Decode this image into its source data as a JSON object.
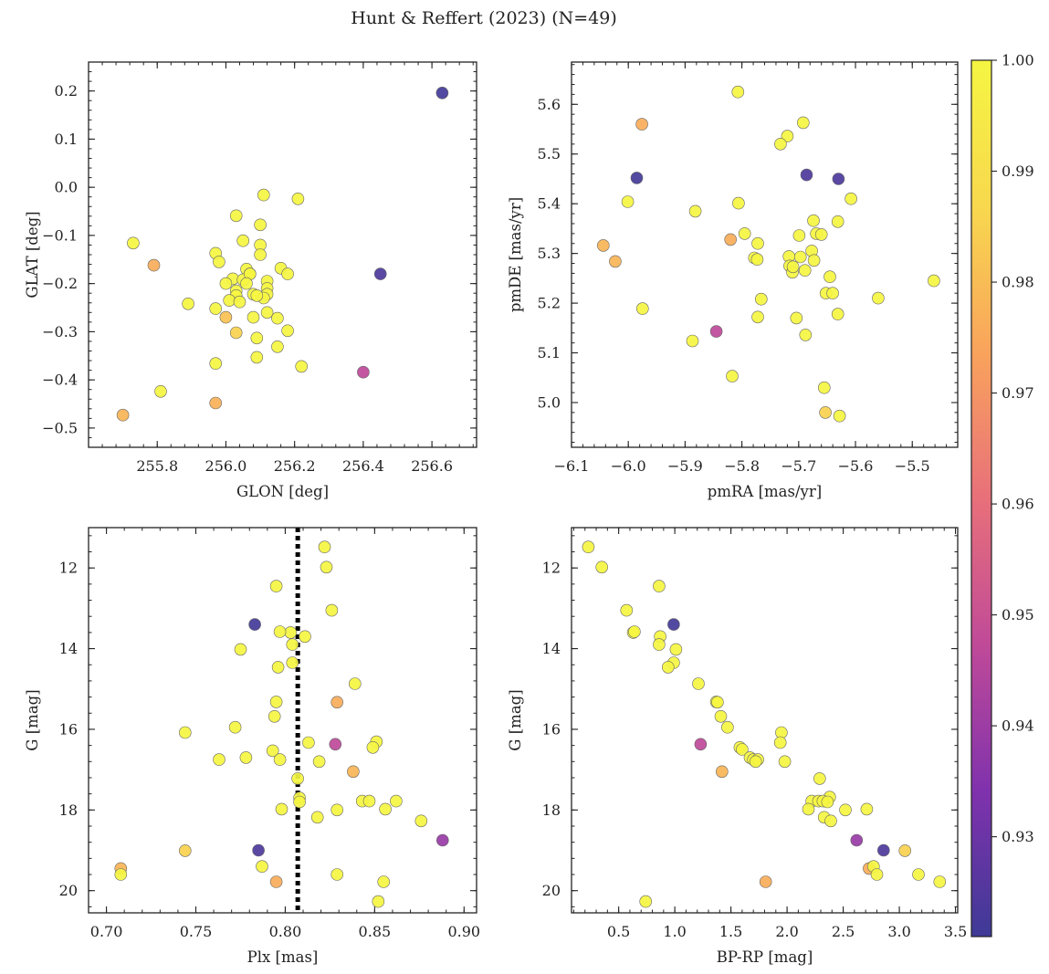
{
  "figure_title": "Hunt & Reffert (2023) (N=49)",
  "colorbar": {
    "min": 0.921,
    "max": 1.0,
    "ticks": [
      "0.93",
      "0.94",
      "0.95",
      "0.96",
      "0.97",
      "0.98",
      "0.99",
      "1.00"
    ],
    "tick_values": [
      0.93,
      0.94,
      0.95,
      0.96,
      0.97,
      0.98,
      0.99,
      1.0
    ],
    "colormap": "plasma",
    "colormap_stops": [
      "#3e3a96",
      "#8032ad",
      "#c04a98",
      "#e8707a",
      "#f9a35c",
      "#f8d84e",
      "#f5f542"
    ]
  },
  "chart_data": [
    {
      "type": "scatter",
      "xlabel": "GLON [deg]",
      "ylabel": "GLAT [deg]",
      "xlim": [
        255.6,
        256.73
      ],
      "ylim": [
        -0.54,
        0.26
      ],
      "xticks": [
        255.8,
        256.0,
        256.2,
        256.4,
        256.6
      ],
      "xtick_labels": [
        "255.8",
        "256.0",
        "256.2",
        "256.4",
        "256.6"
      ],
      "yticks": [
        -0.5,
        -0.4,
        -0.3,
        -0.2,
        -0.1,
        0.0,
        0.1,
        0.2
      ],
      "ytick_labels": [
        "−0.5",
        "−0.4",
        "−0.3",
        "−0.2",
        "−0.1",
        "0.0",
        "0.1",
        "0.2"
      ],
      "invert_y": false,
      "vline": null,
      "x": [
        256.63,
        256.45,
        256.4,
        255.7,
        255.79,
        256.0,
        255.97,
        256.03,
        255.73,
        256.11,
        256.21,
        256.1,
        256.03,
        256.05,
        255.97,
        255.98,
        256.1,
        256.1,
        256.06,
        256.08,
        256.07,
        256.16,
        256.18,
        256.12,
        256.12,
        256.08,
        256.12,
        256.11,
        256.09,
        256.03,
        256.03,
        256.01,
        256.02,
        256.05,
        256.07,
        256.15,
        256.18,
        256.09,
        256.15,
        256.09,
        256.22,
        255.97,
        255.97,
        255.81,
        255.89,
        256.04,
        256.0,
        256.06,
        256.12
      ],
      "y": [
        0.196,
        -0.18,
        -0.384,
        -0.473,
        -0.162,
        -0.27,
        -0.448,
        -0.302,
        -0.116,
        -0.016,
        -0.024,
        -0.078,
        -0.059,
        -0.111,
        -0.137,
        -0.155,
        -0.12,
        -0.14,
        -0.17,
        -0.27,
        -0.18,
        -0.168,
        -0.18,
        -0.195,
        -0.21,
        -0.222,
        -0.222,
        -0.23,
        -0.225,
        -0.215,
        -0.225,
        -0.235,
        -0.19,
        -0.192,
        -0.18,
        -0.272,
        -0.298,
        -0.313,
        -0.331,
        -0.353,
        -0.372,
        -0.252,
        -0.366,
        -0.424,
        -0.242,
        -0.238,
        -0.2,
        -0.2,
        -0.26
      ],
      "c": [
        0.922,
        0.924,
        0.947,
        0.978,
        0.976,
        0.981,
        0.977,
        0.985,
        1.0,
        1.0,
        1.0,
        1.0,
        1.0,
        1.0,
        1.0,
        1.0,
        1.0,
        1.0,
        1.0,
        1.0,
        1.0,
        1.0,
        1.0,
        1.0,
        1.0,
        1.0,
        1.0,
        1.0,
        1.0,
        1.0,
        1.0,
        1.0,
        1.0,
        1.0,
        1.0,
        1.0,
        1.0,
        1.0,
        1.0,
        1.0,
        1.0,
        1.0,
        1.0,
        1.0,
        1.0,
        1.0,
        1.0,
        1.0,
        1.0
      ]
    },
    {
      "type": "scatter",
      "xlabel": "pmRA [mas/yr]",
      "ylabel": "pmDE [mas/yr]",
      "xlim": [
        -6.1,
        -5.42
      ],
      "ylim": [
        4.91,
        5.685
      ],
      "xticks": [
        -6.1,
        -6.0,
        -5.9,
        -5.8,
        -5.7,
        -5.6,
        -5.5
      ],
      "xtick_labels": [
        "−6.1",
        "−6.0",
        "−5.9",
        "−5.8",
        "−5.7",
        "−5.6",
        "−5.5"
      ],
      "yticks": [
        5.0,
        5.1,
        5.2,
        5.3,
        5.4,
        5.5,
        5.6
      ],
      "ytick_labels": [
        "5.0",
        "5.1",
        "5.2",
        "5.3",
        "5.4",
        "5.5",
        "5.6"
      ],
      "invert_y": false,
      "vline": null,
      "x": [
        -5.985,
        -5.686,
        -5.63,
        -5.845,
        -6.044,
        -6.023,
        -5.976,
        -5.82,
        -5.653,
        -5.807,
        -5.692,
        -5.72,
        -5.732,
        -5.806,
        -6.001,
        -5.882,
        -5.608,
        -5.674,
        -5.631,
        -5.669,
        -5.66,
        -5.699,
        -5.677,
        -5.717,
        -5.778,
        -5.772,
        -5.716,
        -5.697,
        -5.689,
        -5.711,
        -5.673,
        -5.652,
        -5.645,
        -5.56,
        -5.462,
        -5.631,
        -5.773,
        -5.766,
        -5.975,
        -5.704,
        -5.688,
        -5.887,
        -5.817,
        -5.655,
        -5.628,
        -5.795,
        -5.772,
        -5.71,
        -5.64
      ],
      "y": [
        5.452,
        5.458,
        5.45,
        5.143,
        5.316,
        5.284,
        5.56,
        5.328,
        4.98,
        5.625,
        5.563,
        5.536,
        5.52,
        5.401,
        5.404,
        5.385,
        5.41,
        5.366,
        5.364,
        5.34,
        5.338,
        5.336,
        5.305,
        5.294,
        5.291,
        5.32,
        5.275,
        5.293,
        5.266,
        5.262,
        5.286,
        5.22,
        5.253,
        5.21,
        5.245,
        5.178,
        5.288,
        5.208,
        5.189,
        5.17,
        5.136,
        5.124,
        5.053,
        5.03,
        4.973,
        5.34,
        5.172,
        5.273,
        5.22
      ],
      "c": [
        0.922,
        0.924,
        0.924,
        0.947,
        0.978,
        0.978,
        0.976,
        0.976,
        0.985,
        1.0,
        1.0,
        1.0,
        1.0,
        1.0,
        1.0,
        1.0,
        1.0,
        1.0,
        1.0,
        1.0,
        1.0,
        1.0,
        1.0,
        1.0,
        1.0,
        1.0,
        1.0,
        1.0,
        1.0,
        1.0,
        1.0,
        1.0,
        1.0,
        1.0,
        1.0,
        1.0,
        1.0,
        1.0,
        1.0,
        1.0,
        1.0,
        1.0,
        1.0,
        1.0,
        1.0,
        1.0,
        1.0,
        1.0,
        1.0
      ]
    },
    {
      "type": "scatter",
      "xlabel": "Plx [mas]",
      "ylabel": "G [mag]",
      "xlim": [
        0.69,
        0.907
      ],
      "ylim": [
        11.0,
        20.55
      ],
      "xticks": [
        0.7,
        0.75,
        0.8,
        0.85,
        0.9
      ],
      "xtick_labels": [
        "0.70",
        "0.75",
        "0.80",
        "0.85",
        "0.90"
      ],
      "yticks": [
        12,
        14,
        16,
        18,
        20
      ],
      "ytick_labels": [
        "12",
        "14",
        "16",
        "18",
        "20"
      ],
      "invert_y": true,
      "vline": 0.807,
      "x": [
        0.783,
        0.785,
        0.888,
        0.828,
        0.708,
        0.744,
        0.795,
        0.838,
        0.829,
        0.822,
        0.823,
        0.795,
        0.826,
        0.803,
        0.797,
        0.811,
        0.775,
        0.804,
        0.796,
        0.839,
        0.795,
        0.794,
        0.744,
        0.772,
        0.813,
        0.851,
        0.849,
        0.793,
        0.819,
        0.797,
        0.763,
        0.778,
        0.807,
        0.808,
        0.808,
        0.843,
        0.862,
        0.847,
        0.856,
        0.798,
        0.818,
        0.829,
        0.876,
        0.787,
        0.708,
        0.829,
        0.855,
        0.852,
        0.804
      ],
      "y": [
        13.4,
        19.0,
        18.75,
        16.37,
        19.45,
        19.01,
        19.78,
        17.05,
        15.33,
        11.48,
        11.98,
        12.45,
        13.05,
        13.6,
        13.58,
        13.7,
        14.02,
        13.9,
        14.46,
        14.87,
        15.32,
        15.68,
        16.08,
        15.95,
        16.33,
        16.31,
        16.45,
        16.53,
        16.8,
        16.75,
        16.75,
        16.7,
        17.22,
        17.7,
        17.8,
        17.78,
        17.78,
        17.78,
        17.98,
        17.98,
        18.18,
        18.0,
        18.27,
        19.4,
        19.6,
        19.6,
        19.78,
        20.27,
        14.35
      ],
      "c": [
        0.922,
        0.924,
        0.939,
        0.947,
        0.978,
        0.985,
        0.976,
        0.978,
        0.976,
        1.0,
        1.0,
        1.0,
        1.0,
        1.0,
        1.0,
        1.0,
        1.0,
        1.0,
        1.0,
        1.0,
        1.0,
        1.0,
        1.0,
        1.0,
        1.0,
        1.0,
        1.0,
        1.0,
        1.0,
        1.0,
        1.0,
        1.0,
        1.0,
        1.0,
        1.0,
        1.0,
        1.0,
        1.0,
        1.0,
        1.0,
        1.0,
        1.0,
        1.0,
        1.0,
        1.0,
        1.0,
        1.0,
        1.0,
        1.0
      ]
    },
    {
      "type": "scatter",
      "xlabel": "BP-RP [mag]",
      "ylabel": "G [mag]",
      "xlim": [
        0.08,
        3.52
      ],
      "ylim": [
        11.0,
        20.55
      ],
      "xticks": [
        0.5,
        1.0,
        1.5,
        2.0,
        2.5,
        3.0,
        3.5
      ],
      "xtick_labels": [
        "0.5",
        "1.0",
        "1.5",
        "2.0",
        "2.5",
        "3.0",
        "3.5"
      ],
      "yticks": [
        12,
        14,
        16,
        18,
        20
      ],
      "ytick_labels": [
        "12",
        "14",
        "16",
        "18",
        "20"
      ],
      "invert_y": true,
      "vline": null,
      "x": [
        0.99,
        2.86,
        2.62,
        1.23,
        1.42,
        3.05,
        2.73,
        1.81,
        0.23,
        0.35,
        0.86,
        0.57,
        0.63,
        0.64,
        0.87,
        0.86,
        1.01,
        0.99,
        0.94,
        1.21,
        1.37,
        1.38,
        1.41,
        1.47,
        1.95,
        1.94,
        1.58,
        1.6,
        1.67,
        1.7,
        1.74,
        1.72,
        1.98,
        2.29,
        2.38,
        2.22,
        2.28,
        2.32,
        2.36,
        2.52,
        2.71,
        2.19,
        2.33,
        2.39,
        2.77,
        2.8,
        3.17,
        3.36,
        0.74
      ],
      "y": [
        13.4,
        19.0,
        18.75,
        16.37,
        17.05,
        19.01,
        19.45,
        19.78,
        11.48,
        11.98,
        12.45,
        13.05,
        13.6,
        13.58,
        13.7,
        13.9,
        14.02,
        14.35,
        14.46,
        14.87,
        15.32,
        15.33,
        15.68,
        15.95,
        16.08,
        16.33,
        16.45,
        16.5,
        16.7,
        16.75,
        16.75,
        16.8,
        16.8,
        17.22,
        17.68,
        17.78,
        17.78,
        17.78,
        17.8,
        18.0,
        17.98,
        17.98,
        18.18,
        18.27,
        19.4,
        19.6,
        19.6,
        19.78,
        20.27
      ],
      "c": [
        0.922,
        0.924,
        0.939,
        0.947,
        0.978,
        0.985,
        0.976,
        0.976,
        1.0,
        1.0,
        1.0,
        1.0,
        1.0,
        1.0,
        1.0,
        1.0,
        1.0,
        1.0,
        1.0,
        1.0,
        1.0,
        1.0,
        1.0,
        1.0,
        1.0,
        1.0,
        1.0,
        1.0,
        1.0,
        1.0,
        1.0,
        1.0,
        1.0,
        1.0,
        1.0,
        1.0,
        1.0,
        1.0,
        1.0,
        1.0,
        1.0,
        1.0,
        1.0,
        1.0,
        1.0,
        1.0,
        1.0,
        1.0,
        1.0
      ]
    }
  ]
}
